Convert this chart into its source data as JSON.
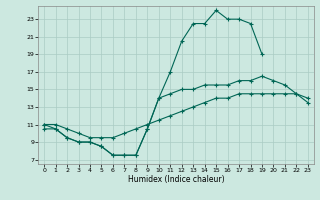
{
  "xlabel": "Humidex (Indice chaleur)",
  "bg_color": "#cce8e0",
  "grid_color": "#aaccc4",
  "line_color": "#006655",
  "xlim": [
    -0.5,
    23.5
  ],
  "ylim": [
    6.5,
    24.5
  ],
  "xticks": [
    0,
    1,
    2,
    3,
    4,
    5,
    6,
    7,
    8,
    9,
    10,
    11,
    12,
    13,
    14,
    15,
    16,
    17,
    18,
    19,
    20,
    21,
    22,
    23
  ],
  "yticks": [
    7,
    9,
    11,
    13,
    15,
    17,
    19,
    21,
    23
  ],
  "line1_x": [
    0,
    1,
    2,
    3,
    4,
    5,
    6,
    7,
    8,
    9,
    10,
    11,
    12,
    13,
    14,
    15,
    16,
    17,
    18,
    19
  ],
  "line1_y": [
    10.5,
    10.5,
    9.5,
    9.0,
    9.0,
    8.5,
    7.5,
    7.5,
    7.5,
    10.5,
    14.0,
    17.0,
    20.5,
    22.5,
    22.5,
    24.0,
    23.0,
    23.0,
    22.5,
    19.0
  ],
  "line2_x": [
    0,
    1,
    2,
    3,
    4,
    5,
    6,
    7,
    8,
    9,
    10,
    11,
    12,
    13,
    14,
    15,
    16,
    17,
    18,
    19,
    20,
    21,
    22,
    23
  ],
  "line2_y": [
    11.0,
    10.5,
    9.5,
    9.0,
    9.0,
    8.5,
    7.5,
    7.5,
    7.5,
    10.5,
    14.0,
    14.5,
    15.0,
    15.0,
    15.5,
    15.5,
    15.5,
    16.0,
    16.0,
    16.5,
    16.0,
    15.5,
    14.5,
    13.5
  ],
  "line3_x": [
    0,
    1,
    2,
    3,
    4,
    5,
    6,
    7,
    8,
    9,
    10,
    11,
    12,
    13,
    14,
    15,
    16,
    17,
    18,
    19,
    20,
    21,
    22,
    23
  ],
  "line3_y": [
    11.0,
    11.0,
    10.5,
    10.0,
    9.5,
    9.5,
    9.5,
    10.0,
    10.5,
    11.0,
    11.5,
    12.0,
    12.5,
    13.0,
    13.5,
    14.0,
    14.0,
    14.5,
    14.5,
    14.5,
    14.5,
    14.5,
    14.5,
    14.0
  ]
}
